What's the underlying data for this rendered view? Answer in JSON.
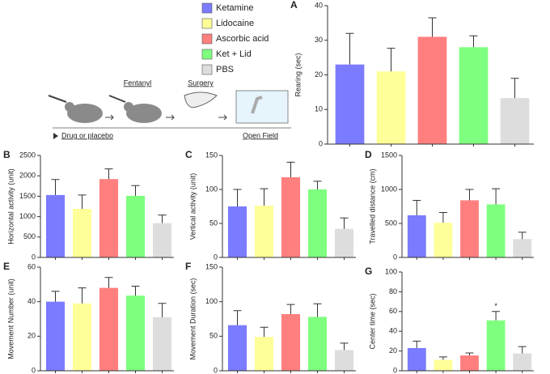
{
  "legend": [
    {
      "name": "Ketamine",
      "color": "#7b7bff"
    },
    {
      "name": "Lidocaine",
      "color": "#ffff99"
    },
    {
      "name": "Ascorbic acid",
      "color": "#ff7f7f"
    },
    {
      "name": "Ket + Lid",
      "color": "#7fff7f"
    },
    {
      "name": "PBS",
      "color": "#dddddd"
    }
  ],
  "diagram": {
    "step1": "Fentanyl",
    "step2": "Surgery",
    "start": "Drug or placebo",
    "end": "Open Field"
  },
  "chart_data": [
    {
      "type": "bar",
      "panel": "A",
      "ylabel": "Rearing (sec)",
      "ylim": [
        0,
        40
      ],
      "yticks": [
        0,
        10,
        20,
        30,
        40
      ],
      "values": [
        23,
        21,
        31,
        28,
        13.3
      ],
      "errors": [
        9,
        6.7,
        5.5,
        3.3,
        5.7
      ]
    },
    {
      "type": "bar",
      "panel": "B",
      "ylabel": "Horizontal activity (unit)",
      "ylim": [
        0,
        2500
      ],
      "yticks": [
        0,
        500,
        1000,
        1500,
        2000,
        2500
      ],
      "values": [
        1530,
        1190,
        1920,
        1510,
        840
      ],
      "errors": [
        380,
        340,
        250,
        250,
        200
      ]
    },
    {
      "type": "bar",
      "panel": "C",
      "ylabel": "Vertical activity (unit)",
      "ylim": [
        0,
        150
      ],
      "yticks": [
        0,
        50,
        100,
        150
      ],
      "values": [
        75,
        76,
        118,
        100,
        42
      ],
      "errors": [
        25,
        25,
        22,
        12,
        16
      ]
    },
    {
      "type": "bar",
      "panel": "D",
      "ylabel": "Travelled distance (cm)",
      "ylim": [
        0,
        1500
      ],
      "yticks": [
        0,
        500,
        1000,
        1500
      ],
      "values": [
        620,
        510,
        840,
        780,
        270
      ],
      "errors": [
        220,
        150,
        160,
        230,
        100
      ]
    },
    {
      "type": "bar",
      "panel": "E",
      "ylabel": "Movement Number (unit)",
      "ylim": [
        0,
        60
      ],
      "yticks": [
        0,
        20,
        40,
        60
      ],
      "values": [
        40,
        39,
        48,
        43.5,
        31
      ],
      "errors": [
        6,
        9,
        6,
        5.5,
        8
      ]
    },
    {
      "type": "bar",
      "panel": "F",
      "ylabel": "Movement Duration (sec)",
      "ylim": [
        0,
        150
      ],
      "yticks": [
        0,
        50,
        100,
        150
      ],
      "values": [
        66,
        49,
        82,
        78,
        30
      ],
      "errors": [
        21,
        14,
        14,
        19,
        10
      ]
    },
    {
      "type": "bar",
      "panel": "G",
      "ylabel": "Center time (sec)",
      "ylim": [
        0,
        100
      ],
      "yticks": [
        0,
        20,
        40,
        60,
        80,
        100
      ],
      "values": [
        23,
        11,
        15.5,
        51,
        17.5
      ],
      "errors": [
        7,
        3,
        2.5,
        9,
        7
      ],
      "annotations": [
        {
          "text": "*",
          "bar": 3
        }
      ]
    }
  ]
}
